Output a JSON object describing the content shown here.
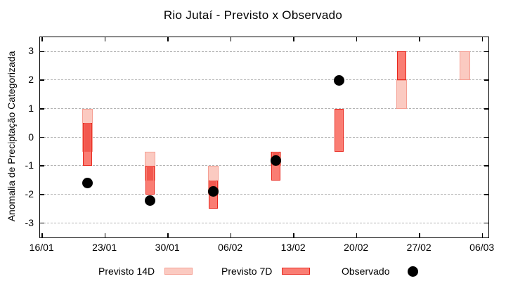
{
  "chart_data": {
    "type": "bar",
    "title": "Rio Jutaí - Previsto x Observado",
    "ylabel": "Anomalia de Preciptação Categorizada",
    "xlabel": "",
    "ylim": [
      -3.5,
      3.5
    ],
    "y_ticks": [
      3,
      2,
      1,
      0,
      -1,
      -2,
      -3
    ],
    "grid": "horizontal dashed gray lines at integer y values",
    "legend_position": "bottom outside",
    "x_axis_days_span": 49.9,
    "x_ticks": [
      {
        "label": "16/01",
        "day": 0
      },
      {
        "label": "23/01",
        "day": 7
      },
      {
        "label": "30/01",
        "day": 14
      },
      {
        "label": "06/02",
        "day": 21
      },
      {
        "label": "13/02",
        "day": 28
      },
      {
        "label": "20/02",
        "day": 35
      },
      {
        "label": "27/02",
        "day": 42
      },
      {
        "label": "06/03",
        "day": 49
      }
    ],
    "series": [
      {
        "name": "Previsto 14D",
        "type": "range-bar"
      },
      {
        "name": "Previsto 7D",
        "type": "range-bar"
      },
      {
        "name": "Observado",
        "type": "scatter"
      }
    ],
    "groups": [
      {
        "date": "21/01",
        "day": 5,
        "previsto_14d": [
          -0.5,
          1
        ],
        "previsto_7d": [
          -1,
          0.5
        ],
        "observado": -1.6
      },
      {
        "date": "28/01",
        "day": 12,
        "previsto_14d": [
          -1.5,
          -0.5
        ],
        "previsto_7d": [
          -2,
          -1
        ],
        "observado": -2.2
      },
      {
        "date": "04/02",
        "day": 19,
        "previsto_14d": [
          -2,
          -1
        ],
        "previsto_7d": [
          -2.5,
          -1.5
        ],
        "observado": -1.9
      },
      {
        "date": "11/02",
        "day": 26,
        "previsto_14d": [
          -1,
          -0.5
        ],
        "previsto_7d": [
          -1.5,
          -0.5
        ],
        "observado": -0.8
      },
      {
        "date": "18/02",
        "day": 33,
        "previsto_14d": null,
        "previsto_7d": [
          -0.5,
          1
        ],
        "observado": 2
      },
      {
        "date": "25/02",
        "day": 40,
        "previsto_14d": [
          1,
          2
        ],
        "previsto_7d": [
          2,
          3
        ],
        "observado": null
      },
      {
        "date": "04/03",
        "day": 47,
        "previsto_14d": [
          2,
          3
        ],
        "previsto_7d": null,
        "observado": null
      }
    ],
    "colors": {
      "previsto_14d_fill": "#fbcac1",
      "previsto_14d_border": "#f59f93",
      "previsto_7d_fill": "#fa7d73",
      "previsto_7d_border": "#e8281e",
      "overlap_fill": "#f2584e",
      "observado": "#000000",
      "gridline": "#b3b3b3",
      "axis": "#000000"
    }
  },
  "legend": {
    "previsto_14d": "Previsto 14D",
    "previsto_7d": "Previsto 7D",
    "observado": "Observado"
  }
}
